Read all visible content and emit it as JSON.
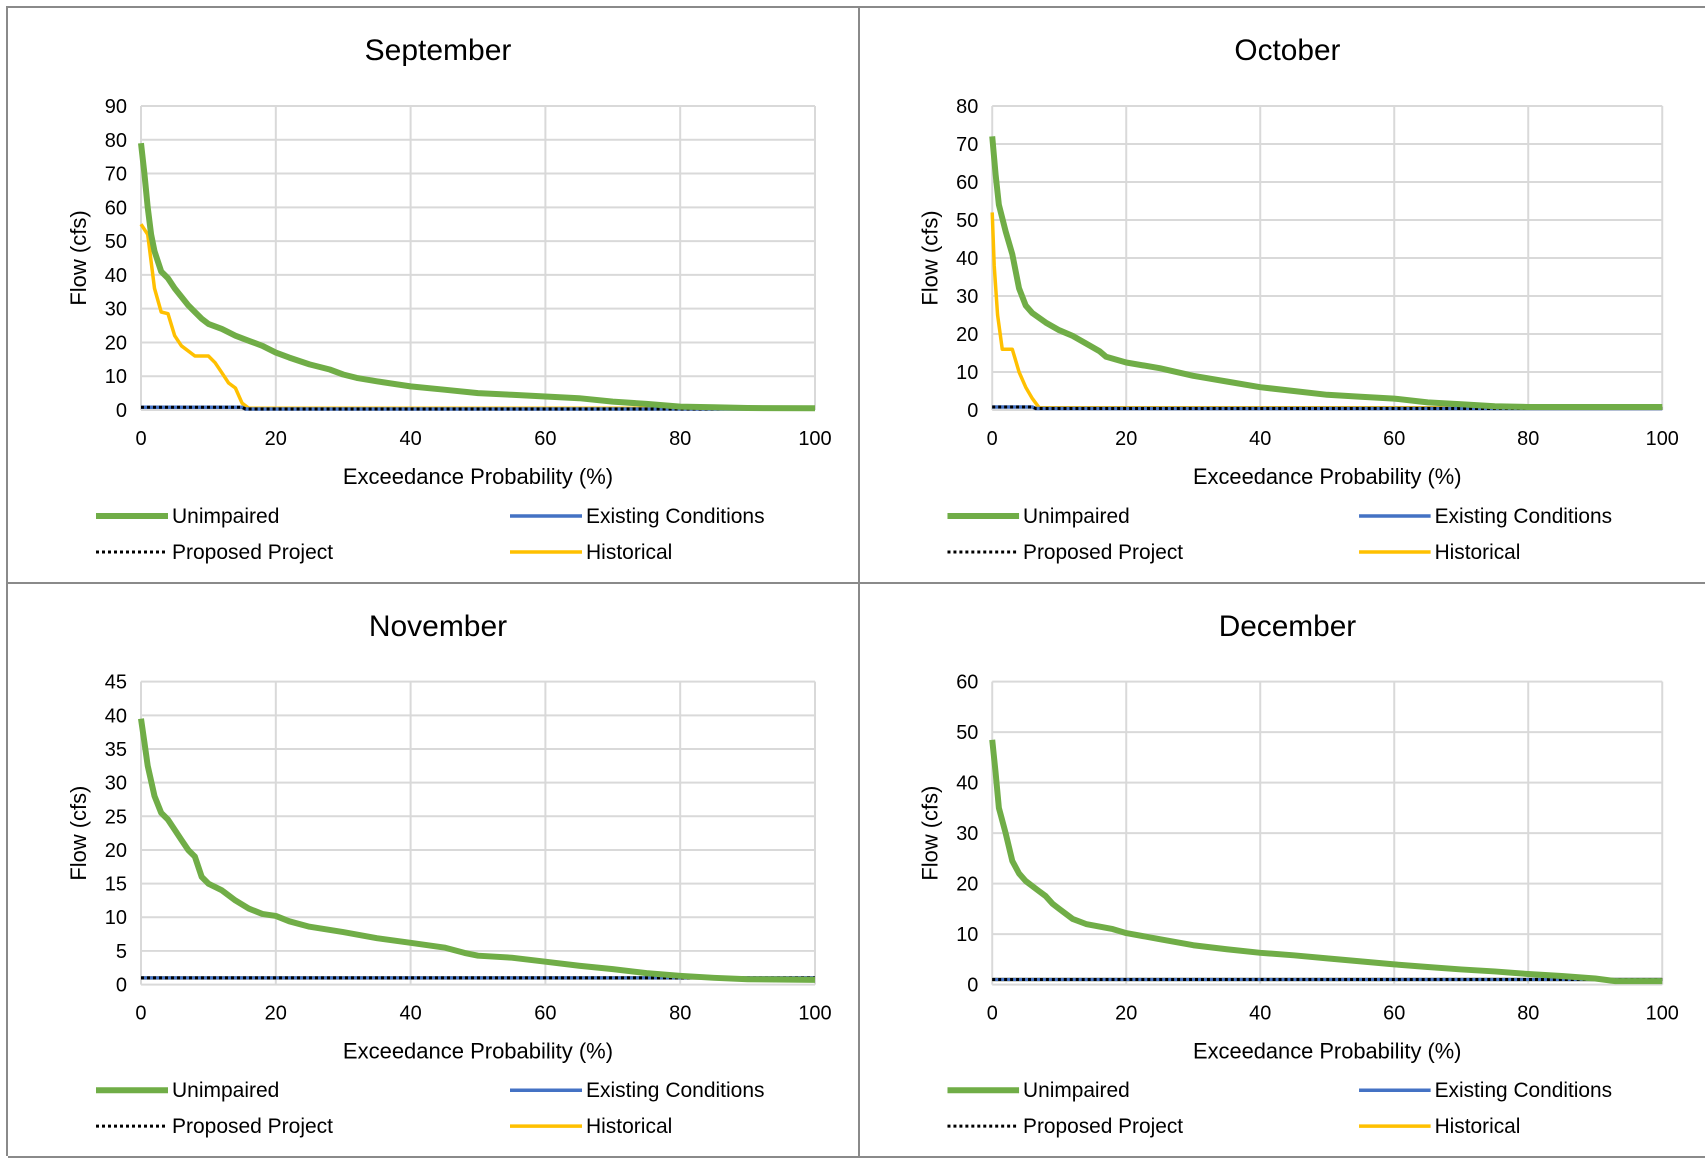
{
  "chart_data": [
    {
      "type": "line",
      "title": "September",
      "xlabel": "Exceedance Probability (%)",
      "ylabel": "Flow (cfs)",
      "xlim": [
        0,
        100
      ],
      "ylim": [
        0,
        90
      ],
      "xticks": [
        "0",
        "20",
        "40",
        "60",
        "80",
        "100"
      ],
      "yticks": [
        "0",
        "10",
        "20",
        "30",
        "40",
        "50",
        "60",
        "70",
        "80",
        "90"
      ],
      "grid": true,
      "legend": "bottom",
      "series": [
        {
          "name": "Unimpaired",
          "color": "#70ad47",
          "style": "solid",
          "x": [
            0,
            0.5,
            1,
            1.5,
            2,
            3,
            4,
            5,
            6,
            7,
            8,
            9,
            10,
            12,
            14,
            16,
            18,
            20,
            22,
            25,
            28,
            30,
            32,
            35,
            40,
            45,
            50,
            55,
            60,
            65,
            70,
            75,
            80,
            85,
            90,
            100
          ],
          "y": [
            79,
            70,
            60,
            52,
            47,
            41,
            39,
            36,
            33.5,
            31,
            29,
            27,
            25.5,
            24,
            22,
            20.5,
            19,
            17,
            15.5,
            13.5,
            12,
            10.5,
            9.5,
            8.5,
            7,
            6,
            5,
            4.5,
            4,
            3.5,
            2.5,
            1.8,
            1,
            0.8,
            0.6,
            0.5
          ]
        },
        {
          "name": "Existing Conditions",
          "color": "#4472c4",
          "style": "solid",
          "x": [
            0,
            15,
            15.5,
            100
          ],
          "y": [
            0.8,
            0.8,
            0.3,
            0.3
          ]
        },
        {
          "name": "Proposed Project",
          "color": "#000000",
          "style": "dotted",
          "x": [
            0,
            15,
            15.5,
            100
          ],
          "y": [
            0.8,
            0.8,
            0.3,
            0.3
          ]
        },
        {
          "name": "Historical",
          "color": "#ffc000",
          "style": "solid",
          "x": [
            0,
            1,
            2,
            3,
            4,
            5,
            6,
            8,
            9,
            10,
            11,
            12,
            13,
            14,
            15,
            16,
            20,
            40,
            60,
            80,
            100
          ],
          "y": [
            55,
            52,
            36,
            29,
            28.5,
            22,
            19,
            16,
            16,
            16,
            14,
            11,
            8,
            6.5,
            2,
            0.5,
            0.5,
            0.5,
            0.5,
            0.5,
            0.5
          ]
        }
      ]
    },
    {
      "type": "line",
      "title": "October",
      "xlabel": "Exceedance Probability (%)",
      "ylabel": "Flow (cfs)",
      "xlim": [
        0,
        100
      ],
      "ylim": [
        0,
        80
      ],
      "xticks": [
        "0",
        "20",
        "40",
        "60",
        "80",
        "100"
      ],
      "yticks": [
        "0",
        "10",
        "20",
        "30",
        "40",
        "50",
        "60",
        "70",
        "80"
      ],
      "grid": true,
      "legend": "bottom",
      "series": [
        {
          "name": "Unimpaired",
          "color": "#70ad47",
          "style": "solid",
          "x": [
            0,
            0.5,
            1,
            2,
            3,
            4,
            5,
            6,
            8,
            10,
            12,
            14,
            16,
            17,
            20,
            25,
            30,
            35,
            40,
            45,
            50,
            55,
            60,
            65,
            70,
            75,
            80,
            90,
            100
          ],
          "y": [
            72,
            62,
            54,
            47,
            41,
            32,
            27.5,
            25.5,
            23,
            21,
            19.5,
            17.5,
            15.5,
            14,
            12.5,
            11,
            9,
            7.5,
            6,
            5,
            4,
            3.5,
            3,
            2,
            1.5,
            1,
            0.8,
            0.8,
            0.8
          ]
        },
        {
          "name": "Existing Conditions",
          "color": "#4472c4",
          "style": "solid",
          "x": [
            0,
            6,
            6.5,
            100
          ],
          "y": [
            0.8,
            0.8,
            0.4,
            0.4
          ]
        },
        {
          "name": "Proposed Project",
          "color": "#000000",
          "style": "dotted",
          "x": [
            0,
            6,
            6.5,
            100
          ],
          "y": [
            0.8,
            0.8,
            0.4,
            0.4
          ]
        },
        {
          "name": "Historical",
          "color": "#ffc000",
          "style": "solid",
          "x": [
            0,
            0.3,
            0.8,
            1.5,
            2.5,
            3,
            4,
            5,
            6,
            7,
            20,
            40,
            60,
            80,
            100
          ],
          "y": [
            52,
            38,
            25,
            16,
            16,
            16,
            10,
            6,
            3,
            0.6,
            0.6,
            0.6,
            0.6,
            0.6,
            0.6
          ]
        }
      ]
    },
    {
      "type": "line",
      "title": "November",
      "xlabel": "Exceedance Probability (%)",
      "ylabel": "Flow (cfs)",
      "xlim": [
        0,
        100
      ],
      "ylim": [
        0,
        45
      ],
      "xticks": [
        "0",
        "20",
        "40",
        "60",
        "80",
        "100"
      ],
      "yticks": [
        "0",
        "5",
        "10",
        "15",
        "20",
        "25",
        "30",
        "35",
        "40",
        "45"
      ],
      "grid": true,
      "legend": "bottom",
      "series": [
        {
          "name": "Unimpaired",
          "color": "#70ad47",
          "style": "solid",
          "x": [
            0,
            0.5,
            1,
            2,
            3,
            4,
            5,
            6,
            7,
            8,
            9,
            10,
            12,
            14,
            16,
            18,
            20,
            22,
            25,
            30,
            35,
            40,
            45,
            48,
            50,
            55,
            60,
            65,
            70,
            75,
            80,
            85,
            90,
            100
          ],
          "y": [
            39.5,
            36,
            32.5,
            28,
            25.5,
            24.5,
            23,
            21.5,
            20,
            19,
            16,
            15,
            14,
            12.5,
            11.3,
            10.5,
            10.2,
            9.4,
            8.6,
            7.8,
            6.9,
            6.2,
            5.5,
            4.7,
            4.3,
            4,
            3.4,
            2.8,
            2.3,
            1.7,
            1.3,
            1,
            0.8,
            0.7
          ]
        },
        {
          "name": "Existing Conditions",
          "color": "#4472c4",
          "style": "solid",
          "x": [
            0,
            100
          ],
          "y": [
            1,
            1
          ]
        },
        {
          "name": "Proposed Project",
          "color": "#000000",
          "style": "dotted",
          "x": [
            0,
            100
          ],
          "y": [
            1,
            1
          ]
        },
        {
          "name": "Historical",
          "color": "#ffc000",
          "style": "solid",
          "x": [
            0,
            100
          ],
          "y": [
            1,
            1
          ]
        }
      ]
    },
    {
      "type": "line",
      "title": "December",
      "xlabel": "Exceedance Probability (%)",
      "ylabel": "Flow (cfs)",
      "xlim": [
        0,
        100
      ],
      "ylim": [
        0,
        60
      ],
      "xticks": [
        "0",
        "20",
        "40",
        "60",
        "80",
        "100"
      ],
      "yticks": [
        "0",
        "10",
        "20",
        "30",
        "40",
        "50",
        "60"
      ],
      "grid": true,
      "legend": "bottom",
      "series": [
        {
          "name": "Unimpaired",
          "color": "#70ad47",
          "style": "solid",
          "x": [
            0,
            0.5,
            1,
            2,
            3,
            4,
            5,
            6,
            7,
            8,
            9,
            10,
            12,
            14,
            16,
            18,
            20,
            25,
            30,
            35,
            40,
            45,
            50,
            55,
            60,
            65,
            70,
            75,
            80,
            85,
            90,
            93,
            100
          ],
          "y": [
            48.5,
            42,
            35,
            30,
            24.5,
            22,
            20.5,
            19.5,
            18.5,
            17.5,
            16,
            15,
            13,
            12,
            11.5,
            11,
            10.2,
            9,
            7.8,
            7,
            6.3,
            5.8,
            5.2,
            4.6,
            4,
            3.5,
            3,
            2.6,
            2.1,
            1.7,
            1.2,
            0.7,
            0.7
          ]
        },
        {
          "name": "Existing Conditions",
          "color": "#4472c4",
          "style": "solid",
          "x": [
            0,
            100
          ],
          "y": [
            1,
            1
          ]
        },
        {
          "name": "Proposed Project",
          "color": "#000000",
          "style": "dotted",
          "x": [
            0,
            100
          ],
          "y": [
            1,
            1
          ]
        },
        {
          "name": "Historical",
          "color": "#ffc000",
          "style": "solid",
          "x": [
            0,
            100
          ],
          "y": [
            1,
            1
          ]
        }
      ]
    }
  ]
}
